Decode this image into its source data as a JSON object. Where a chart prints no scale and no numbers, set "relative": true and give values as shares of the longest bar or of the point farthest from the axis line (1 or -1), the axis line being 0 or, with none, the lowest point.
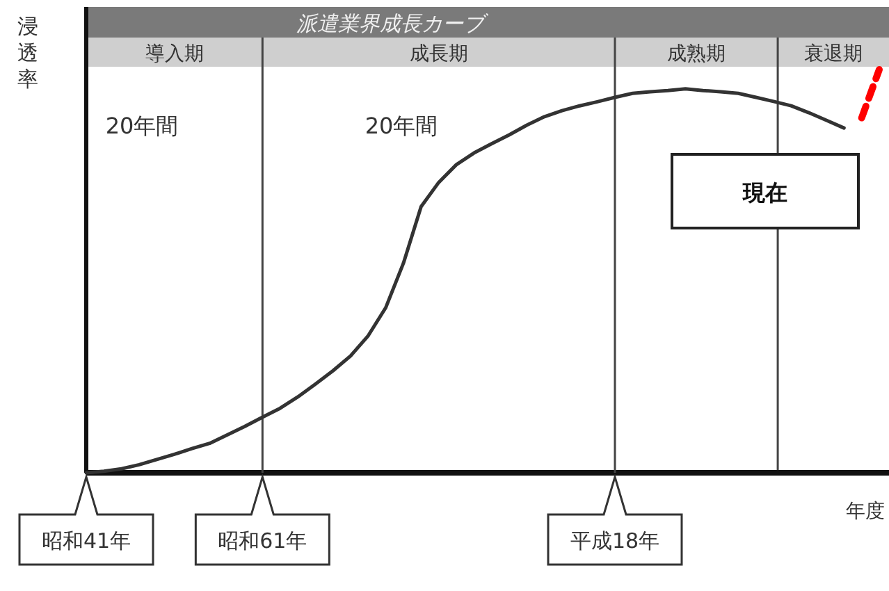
{
  "chart_data": {
    "type": "line",
    "title": "派遣業界成長カーブ",
    "xlabel": "年度",
    "ylabel": "浸透率",
    "relative": true,
    "categories": [
      "昭和41年",
      null,
      null,
      null,
      null,
      null,
      null,
      null,
      null,
      null,
      "昭和61年",
      null,
      null,
      null,
      null,
      null,
      null,
      null,
      null,
      null,
      null,
      null,
      null,
      null,
      null,
      null,
      null,
      null,
      null,
      null,
      "平成18年",
      null,
      null,
      null,
      null,
      null,
      null,
      null,
      null,
      null,
      null,
      null,
      null,
      null,
      null,
      null
    ],
    "series": [
      {
        "color": "#333333",
        "line_style": "solid",
        "values": [
          0,
          0.004,
          0.01,
          0.02,
          0.033,
          0.046,
          0.06,
          0.073,
          0.094,
          0.115,
          0.138,
          0.16,
          0.188,
          0.22,
          0.253,
          0.29,
          0.34,
          0.41,
          0.52,
          0.66,
          0.72,
          0.764,
          0.793,
          0.816,
          0.838,
          0.862,
          0.883,
          0.898,
          0.91,
          0.92,
          0.931,
          0.941,
          0.945,
          0.948,
          0.952,
          0.948,
          0.945,
          0.941,
          0.931,
          0.921,
          0.91,
          0.893,
          0.874,
          0.855,
          null,
          null
        ]
      },
      {
        "color": "#ff0000",
        "line_style": "dashed",
        "values": [
          null,
          null,
          null,
          null,
          null,
          null,
          null,
          null,
          null,
          null,
          null,
          null,
          null,
          null,
          null,
          null,
          null,
          null,
          null,
          null,
          null,
          null,
          null,
          null,
          null,
          null,
          null,
          null,
          null,
          null,
          null,
          null,
          null,
          null,
          null,
          null,
          null,
          null,
          null,
          null,
          null,
          null,
          null,
          null,
          0.88,
          1
        ]
      }
    ],
    "annotations": [
      "導入期",
      "成長期",
      "成熟期",
      "衰退期",
      "20年間",
      "20年間",
      "現在"
    ],
    "grid": "x"
  }
}
